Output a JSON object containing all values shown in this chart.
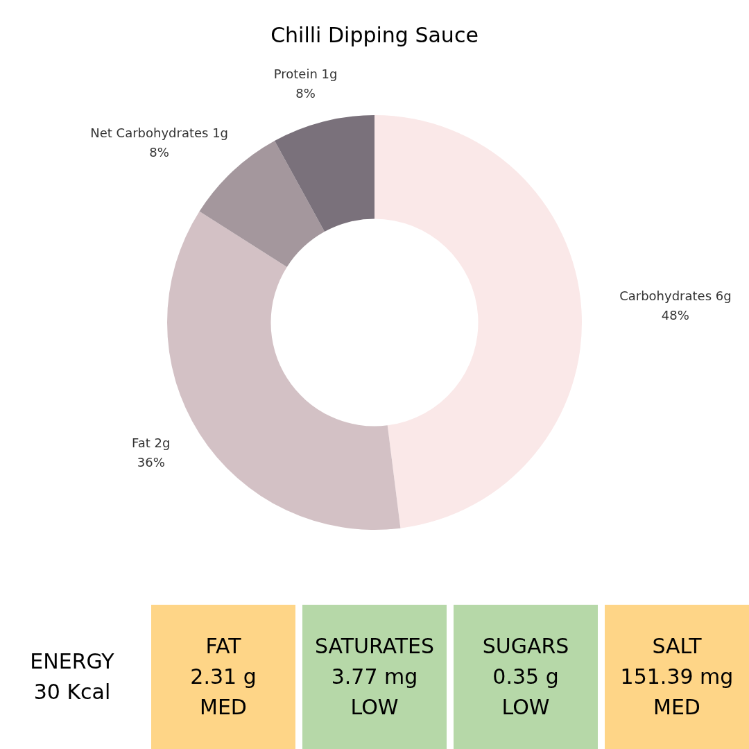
{
  "chart_data": [
    {
      "type": "donut",
      "title": "Chilli Dipping Sauce",
      "categories": [
        "Carbohydrates 6g",
        "Fat 2g",
        "Net Carbohydrates 1g",
        "Protein 1g"
      ],
      "values": [
        48,
        36,
        8,
        8
      ],
      "value_labels": [
        "48%",
        "36%",
        "8%",
        "8%"
      ],
      "colors": [
        "#fae8e8",
        "#d3c1c5",
        "#a4979d",
        "#7a717b"
      ],
      "legend": false
    },
    {
      "type": "other",
      "annotations": [
        "ENERGY\n30 Kcal",
        "FAT\n2.31 g\nMED",
        "SATURATES\n3.77 mg\nLOW",
        "SUGARS\n0.35 g\nLOW",
        "SALT\n151.39 mg\nMED"
      ],
      "colors": [
        "#ffffff",
        "#fed587",
        "#b6d8a8",
        "#b6d8a8",
        "#fed587"
      ]
    }
  ]
}
